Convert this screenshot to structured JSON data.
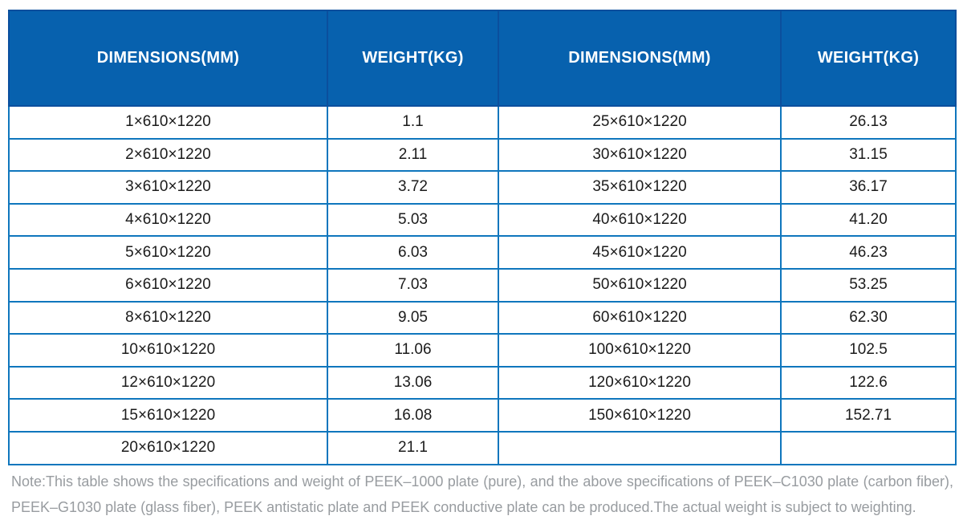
{
  "theme": {
    "header_bg": "#0761ae",
    "header_divider": "#0b4f9d",
    "cell_border": "#0f76bd",
    "cell_text": "#1b1b1b",
    "note_text": "#989ca0",
    "header_text": "#ffffff"
  },
  "table": {
    "headers": [
      "DIMENSIONS(MM)",
      "WEIGHT(KG)",
      "DIMENSIONS(MM)",
      "WEIGHT(KG)"
    ],
    "rows": [
      [
        "1×610×1220",
        "1.1",
        "25×610×1220",
        "26.13"
      ],
      [
        "2×610×1220",
        "2.11",
        "30×610×1220",
        "31.15"
      ],
      [
        "3×610×1220",
        "3.72",
        "35×610×1220",
        "36.17"
      ],
      [
        "4×610×1220",
        "5.03",
        "40×610×1220",
        "41.20"
      ],
      [
        "5×610×1220",
        "6.03",
        "45×610×1220",
        "46.23"
      ],
      [
        "6×610×1220",
        "7.03",
        "50×610×1220",
        "53.25"
      ],
      [
        "8×610×1220",
        "9.05",
        "60×610×1220",
        "62.30"
      ],
      [
        "10×610×1220",
        "11.06",
        "100×610×1220",
        "102.5"
      ],
      [
        "12×610×1220",
        "13.06",
        "120×610×1220",
        "122.6"
      ],
      [
        "15×610×1220",
        "16.08",
        "150×610×1220",
        "152.71"
      ],
      [
        "20×610×1220",
        "21.1",
        "",
        ""
      ]
    ]
  },
  "note": "Note:This table shows the specifications and weight of PEEK–1000 plate (pure), and the above specifications of PEEK–C1030 plate (carbon fiber), PEEK–G1030 plate (glass fiber), PEEK antistatic plate and PEEK conductive plate can be produced.The actual weight is subject to weighting."
}
